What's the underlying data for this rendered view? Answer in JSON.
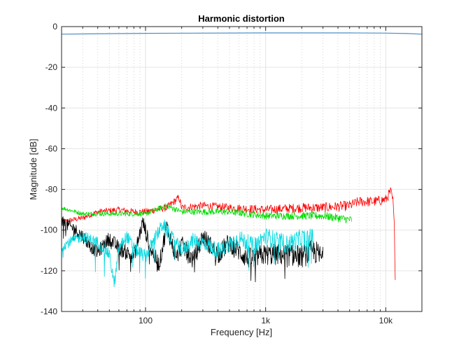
{
  "chart_data": {
    "type": "line",
    "title": "Harmonic distortion",
    "xlabel": "Frequency [Hz]",
    "ylabel": "Magnitude [dB]",
    "xscale": "log",
    "xlim": [
      20,
      20000
    ],
    "ylim": [
      -140,
      0
    ],
    "grid": true,
    "legend": "none",
    "x_ticks": [
      {
        "value": 100,
        "label": "100"
      },
      {
        "value": 1000,
        "label": "1k"
      },
      {
        "value": 10000,
        "label": "10k"
      }
    ],
    "y_ticks": [
      0,
      -20,
      -40,
      -60,
      -80,
      -100,
      -120,
      -140
    ],
    "series": [
      {
        "color": "#4a8fc8",
        "noise": 0,
        "x": [
          20,
          100,
          1000,
          5000,
          10000,
          15000,
          20000
        ],
        "y": [
          -3.7,
          -3.3,
          -3.1,
          -3.1,
          -3.2,
          -3.4,
          -3.7
        ]
      },
      {
        "color": "#ff0000",
        "noise": 2.5,
        "x": [
          20,
          30,
          40,
          60,
          80,
          100,
          150,
          190,
          200,
          300,
          500,
          1000,
          2000,
          3000,
          5000,
          6000,
          8000,
          10000,
          11000,
          11500,
          11800,
          12000
        ],
        "y": [
          -96,
          -94,
          -91,
          -90,
          -91,
          -91,
          -89,
          -84,
          -89,
          -88,
          -89,
          -90,
          -89,
          -89,
          -88,
          -86,
          -86,
          -85,
          -81,
          -86,
          -100,
          -122
        ]
      },
      {
        "color": "#00dd00",
        "noise": 2.0,
        "x": [
          20,
          30,
          40,
          60,
          100,
          150,
          200,
          300,
          500,
          1000,
          2000,
          3000,
          4000,
          5200
        ],
        "y": [
          -89,
          -92,
          -92,
          -92,
          -92,
          -88,
          -91,
          -91,
          -91,
          -93,
          -93,
          -93,
          -94,
          -95
        ]
      },
      {
        "color": "#000000",
        "noise": 6.0,
        "x": [
          20,
          25,
          30,
          35,
          40,
          50,
          60,
          80,
          95,
          110,
          130,
          150,
          180,
          200,
          250,
          300,
          400,
          500,
          700,
          1000,
          1500,
          2000,
          2500,
          3000
        ],
        "y": [
          -96,
          -99,
          -103,
          -108,
          -111,
          -104,
          -109,
          -113,
          -96,
          -109,
          -117,
          -98,
          -114,
          -107,
          -115,
          -103,
          -112,
          -106,
          -114,
          -112,
          -112,
          -113,
          -110,
          -114
        ]
      },
      {
        "color": "#00d8e0",
        "noise": 5.0,
        "x": [
          20,
          25,
          30,
          40,
          50,
          55,
          60,
          70,
          80,
          100,
          120,
          140,
          160,
          200,
          250,
          300,
          400,
          600,
          800,
          1000,
          1500,
          2000,
          2500
        ],
        "y": [
          -108,
          -105,
          -103,
          -106,
          -112,
          -127,
          -109,
          -103,
          -109,
          -113,
          -104,
          -97,
          -103,
          -110,
          -105,
          -106,
          -110,
          -104,
          -108,
          -103,
          -107,
          -104,
          -104
        ]
      }
    ]
  }
}
